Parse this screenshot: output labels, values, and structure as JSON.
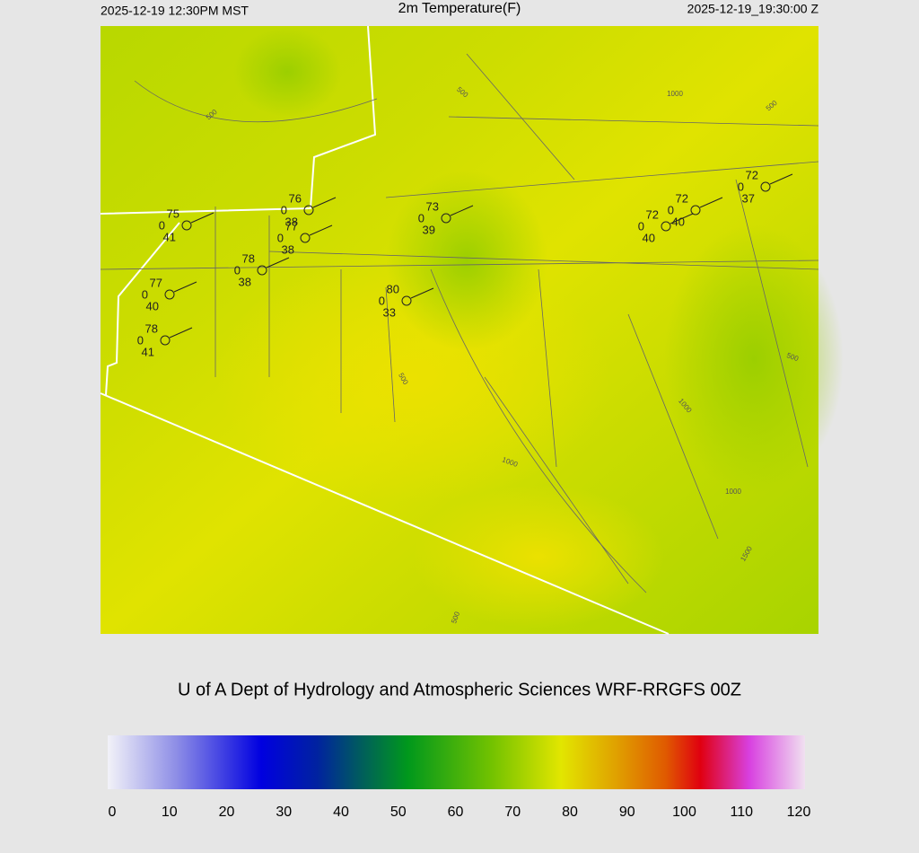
{
  "header": {
    "left": "2025-12-19 12:30PM MST",
    "title": "2m Temperature(F)",
    "right": "2025-12-19_19:30:00 Z"
  },
  "stations": [
    {
      "temperature": "75",
      "wind": "0",
      "dewpoint": "41"
    },
    {
      "temperature": "76",
      "wind": "0",
      "dewpoint": "38"
    },
    {
      "temperature": "77",
      "wind": "0",
      "dewpoint": "38"
    },
    {
      "temperature": "78",
      "wind": "0",
      "dewpoint": "38"
    },
    {
      "temperature": "77",
      "wind": "0",
      "dewpoint": "40"
    },
    {
      "temperature": "78",
      "wind": "0",
      "dewpoint": "41"
    },
    {
      "temperature": "80",
      "wind": "0",
      "dewpoint": "33"
    },
    {
      "temperature": "73",
      "wind": "0",
      "dewpoint": "39"
    },
    {
      "temperature": "72",
      "wind": "0",
      "dewpoint": "40"
    },
    {
      "temperature": "72",
      "wind": "0",
      "dewpoint": "40"
    },
    {
      "temperature": "72",
      "wind": "0",
      "dewpoint": "37"
    }
  ],
  "contour_labels": [
    "500",
    "500",
    "1000",
    "500",
    "500",
    "500",
    "1000",
    "1000",
    "1000",
    "1500",
    "500"
  ],
  "credit": "U of A Dept of Hydrology and Atmospheric Sciences WRF-RRGFS 00Z",
  "colorbar": {
    "range": [
      0,
      120
    ],
    "ticks": [
      0,
      10,
      20,
      30,
      40,
      50,
      60,
      70,
      80,
      90,
      100,
      110,
      120
    ]
  }
}
